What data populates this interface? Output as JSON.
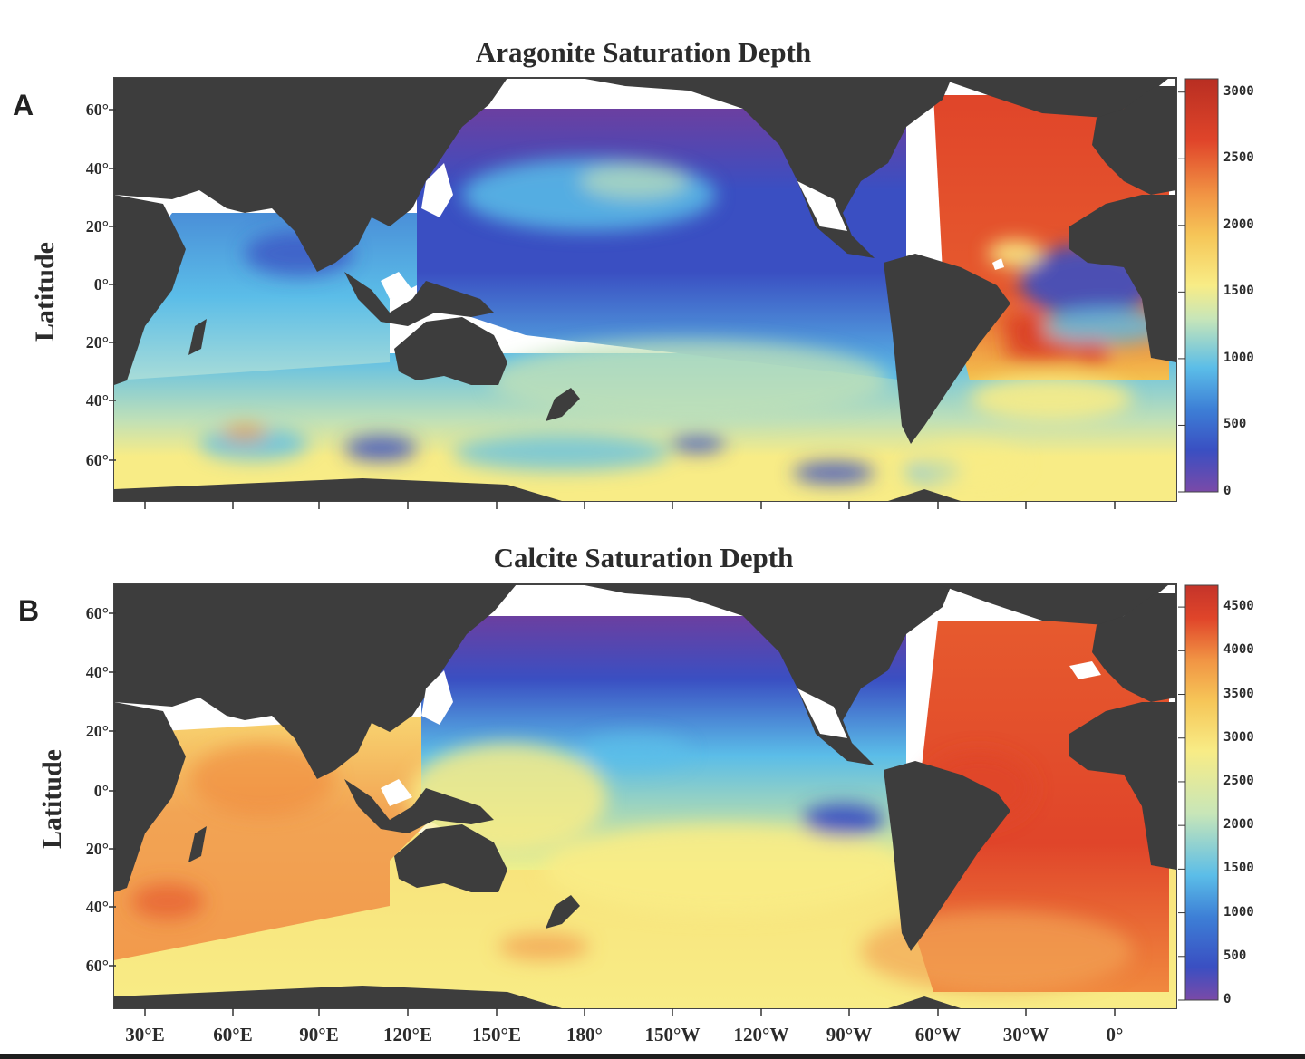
{
  "colors": {
    "land": "#3d3d3d",
    "ocean_low": "#6b3fa0",
    "ocean_blue": "#3a4fc2",
    "ocean_cyan": "#5bbde8",
    "ocean_yellow": "#f8ec86",
    "ocean_orange": "#f19444",
    "ocean_red": "#e0452a",
    "dark_red": "#b82e22"
  },
  "x_axis": {
    "tick_labels": [
      "30°E",
      "60°E",
      "90°E",
      "120°E",
      "150°E",
      "180°",
      "150°W",
      "120°W",
      "90°W",
      "60°W",
      "30°W",
      "0°"
    ]
  },
  "panels": [
    {
      "letter": "A",
      "title": "Aragonite Saturation Depth",
      "ylabel": "Latitude",
      "lat_ticks": [
        "60°",
        "40°",
        "20°",
        "0°",
        "20°",
        "40°",
        "60°"
      ],
      "colorbar": {
        "min": 0,
        "max": 3100,
        "tick_labels": [
          "3000",
          "2500",
          "2000",
          "1500",
          "1000",
          "500",
          "0"
        ],
        "tick_values": [
          3000,
          2500,
          2000,
          1500,
          1000,
          500,
          0
        ]
      }
    },
    {
      "letter": "B",
      "title": "Calcite Saturation Depth",
      "ylabel": "Latitude",
      "lat_ticks": [
        "60°",
        "40°",
        "20°",
        "0°",
        "20°",
        "40°",
        "60°"
      ],
      "colorbar": {
        "min": 0,
        "max": 4750,
        "tick_labels": [
          "4500",
          "4000",
          "3500",
          "3000",
          "2500",
          "2000",
          "1500",
          "1000",
          "500",
          "0"
        ],
        "tick_values": [
          4500,
          4000,
          3500,
          3000,
          2500,
          2000,
          1500,
          1000,
          500,
          0
        ]
      }
    }
  ]
}
